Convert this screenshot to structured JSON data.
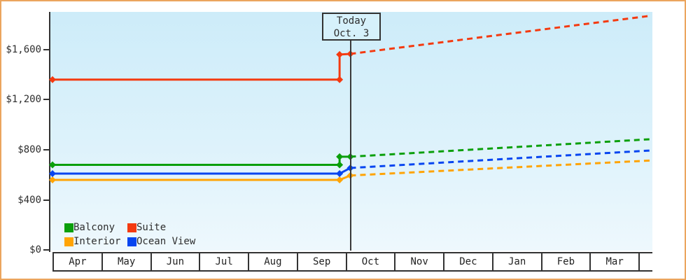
{
  "window": {
    "frame_border_color": "#eba55e",
    "background_color": "#ffffff"
  },
  "today_box": {
    "line1": "Today",
    "line2": "Oct. 3"
  },
  "chart_data": {
    "type": "line",
    "title": "",
    "x_axis": {
      "categories": [
        "Apr",
        "May",
        "Jun",
        "Jul",
        "Aug",
        "Sep",
        "Oct",
        "Nov",
        "Dec",
        "Jan",
        "Feb",
        "Mar"
      ]
    },
    "y_axis": {
      "ticks": [
        {
          "label": "$0",
          "value": 0
        },
        {
          "label": "$400",
          "value": 400
        },
        {
          "label": "$800",
          "value": 800
        },
        {
          "label": "$1,200",
          "value": 1200
        },
        {
          "label": "$1,600",
          "value": 1600
        }
      ],
      "range": [
        0,
        1900
      ]
    },
    "annotation": {
      "type": "vline-today",
      "label": [
        "Today",
        "Oct. 3"
      ],
      "x_months_from_apr1": 6.1
    },
    "legend": {
      "position": "inside-bottom-left",
      "rows": [
        [
          {
            "label": "Balcony",
            "color": "#0b9f0b"
          },
          {
            "label": "Suite",
            "color": "#f43a10"
          }
        ],
        [
          {
            "label": "Interior",
            "color": "#ffa405"
          },
          {
            "label": "Ocean View",
            "color": "#0645f0"
          }
        ]
      ]
    },
    "series": [
      {
        "name": "Interior",
        "color": "#ffa405",
        "history_points": [
          [
            0,
            560
          ],
          [
            5.88,
            560
          ],
          [
            6.1,
            595
          ]
        ],
        "projection_points": [
          [
            6.1,
            595
          ],
          [
            12.27,
            715
          ]
        ],
        "markers": [
          [
            0,
            560
          ],
          [
            5.88,
            560
          ],
          [
            6.1,
            595
          ]
        ]
      },
      {
        "name": "Ocean View",
        "color": "#0645f0",
        "history_points": [
          [
            0,
            610
          ],
          [
            5.88,
            610
          ],
          [
            6.1,
            655
          ]
        ],
        "projection_points": [
          [
            6.1,
            655
          ],
          [
            12.27,
            795
          ]
        ],
        "markers": [
          [
            0,
            610
          ],
          [
            5.88,
            610
          ],
          [
            6.1,
            655
          ]
        ]
      },
      {
        "name": "Balcony",
        "color": "#0b9f0b",
        "history_points": [
          [
            0,
            680
          ],
          [
            5.88,
            680
          ],
          [
            5.88,
            745
          ],
          [
            6.1,
            745
          ]
        ],
        "projection_points": [
          [
            6.1,
            745
          ],
          [
            12.27,
            885
          ]
        ],
        "markers": [
          [
            0,
            680
          ],
          [
            5.88,
            680
          ],
          [
            5.88,
            745
          ],
          [
            6.1,
            745
          ]
        ]
      },
      {
        "name": "Suite",
        "color": "#f43a10",
        "history_points": [
          [
            0,
            1360
          ],
          [
            5.88,
            1360
          ],
          [
            5.88,
            1560
          ],
          [
            6.1,
            1565
          ]
        ],
        "projection_points": [
          [
            6.1,
            1565
          ],
          [
            12.27,
            1870
          ]
        ],
        "markers": [
          [
            0,
            1360
          ],
          [
            5.88,
            1360
          ],
          [
            5.88,
            1560
          ],
          [
            6.1,
            1565
          ]
        ]
      }
    ]
  }
}
